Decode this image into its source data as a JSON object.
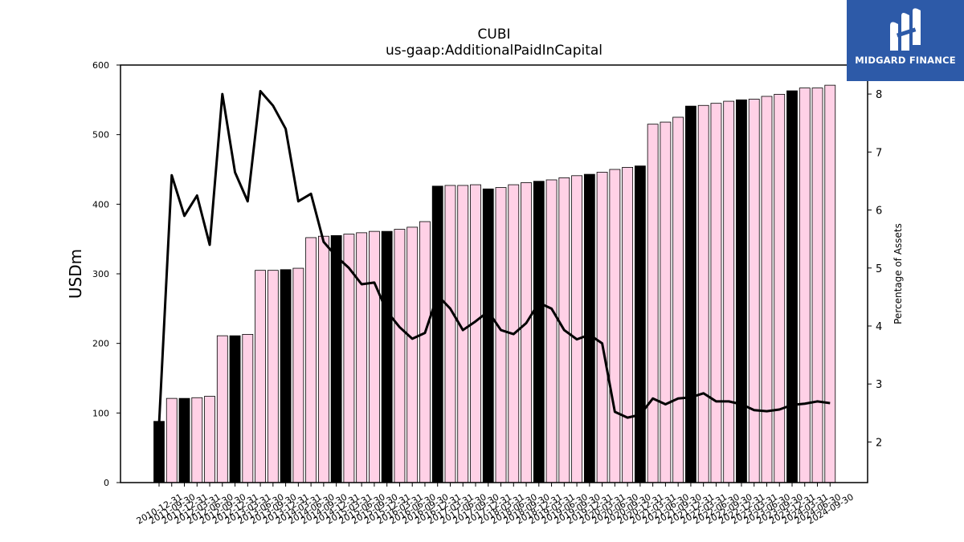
{
  "chart_data": {
    "type": "bar",
    "title": "CUBI",
    "subtitle": "us-gaap:AdditionalPaidInCapital",
    "ylabel": "USDm",
    "y2label": "Percentage of Assets",
    "ylim": [
      0,
      600
    ],
    "y2lim": [
      1.3,
      8.5
    ],
    "yticks": [
      0,
      100,
      200,
      300,
      400,
      500,
      600
    ],
    "y2ticks": [
      2,
      3,
      4,
      5,
      6,
      7,
      8
    ],
    "grid": false,
    "colors": {
      "bar_quarter": "#ffd1e6",
      "bar_year_end": "#000000",
      "line": "#000000"
    },
    "categories": [
      "2010-12-31",
      "2011-09-30",
      "2011-12-31",
      "2012-03-31",
      "2012-06-30",
      "2012-09-30",
      "2012-12-31",
      "2013-03-31",
      "2013-06-30",
      "2013-09-30",
      "2013-12-31",
      "2014-03-31",
      "2014-06-30",
      "2014-09-30",
      "2014-12-31",
      "2015-03-31",
      "2015-06-30",
      "2015-09-30",
      "2015-12-31",
      "2016-03-31",
      "2016-06-30",
      "2016-09-30",
      "2016-12-31",
      "2017-03-31",
      "2017-06-30",
      "2017-09-30",
      "2017-12-31",
      "2018-03-31",
      "2018-06-30",
      "2018-09-30",
      "2018-12-31",
      "2019-03-31",
      "2019-06-30",
      "2019-09-30",
      "2019-12-31",
      "2020-03-31",
      "2020-06-30",
      "2020-09-30",
      "2020-12-31",
      "2021-03-31",
      "2021-06-30",
      "2021-09-30",
      "2021-12-31",
      "2022-03-31",
      "2022-06-30",
      "2022-09-30",
      "2022-12-31",
      "2023-03-31",
      "2023-06-30",
      "2023-09-30",
      "2023-12-31",
      "2024-03-31",
      "2024-06-30",
      "2024-09-30"
    ],
    "series": [
      {
        "kind": "bar",
        "values": [
          88,
          121,
          121,
          122,
          124,
          211,
          211,
          213,
          305,
          305,
          306,
          308,
          352,
          354,
          355,
          357,
          359,
          361,
          361,
          364,
          367,
          375,
          426,
          427,
          427,
          428,
          422,
          424,
          428,
          431,
          433,
          435,
          438,
          441,
          443,
          446,
          450,
          453,
          455,
          515,
          518,
          525,
          541,
          542,
          545,
          548,
          550,
          551,
          555,
          558,
          563,
          567,
          567,
          571
        ],
        "year_end": [
          true,
          false,
          true,
          false,
          false,
          false,
          true,
          false,
          false,
          false,
          true,
          false,
          false,
          false,
          true,
          false,
          false,
          false,
          true,
          false,
          false,
          false,
          true,
          false,
          false,
          false,
          true,
          false,
          false,
          false,
          true,
          false,
          false,
          false,
          true,
          false,
          false,
          false,
          true,
          false,
          false,
          false,
          true,
          false,
          false,
          false,
          true,
          false,
          false,
          false,
          true,
          false,
          false,
          false
        ]
      },
      {
        "kind": "line",
        "axis": "right",
        "values": [
          2.3,
          6.6,
          5.9,
          6.25,
          5.4,
          8.0,
          6.65,
          6.15,
          8.05,
          7.8,
          7.4,
          6.15,
          6.28,
          5.45,
          5.2,
          5.0,
          4.72,
          4.75,
          4.25,
          3.98,
          3.78,
          3.88,
          4.53,
          4.3,
          3.93,
          4.08,
          4.25,
          3.93,
          3.86,
          4.05,
          4.4,
          4.3,
          3.93,
          3.77,
          3.85,
          3.7,
          2.52,
          2.42,
          2.47,
          2.75,
          2.65,
          2.75,
          2.77,
          2.84,
          2.7,
          2.7,
          2.65,
          2.55,
          2.53,
          2.56,
          2.64,
          2.66,
          2.7,
          2.67
        ]
      }
    ]
  },
  "logo": {
    "text": "MIDGARD FINANCE",
    "icon": "midgard-m-logo-icon"
  }
}
